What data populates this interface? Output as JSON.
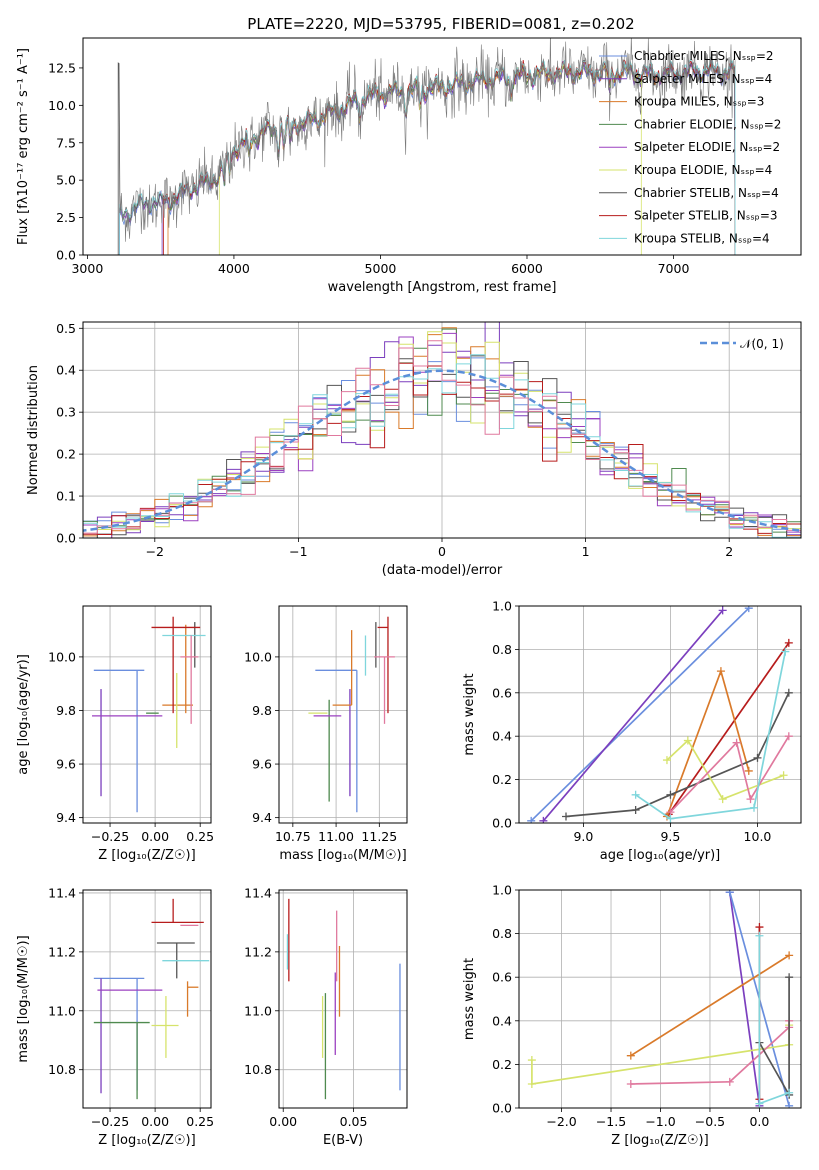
{
  "title": "PLATE=2220, MJD=53795, FIBERID=0081, z=0.202",
  "colors": {
    "Chabrier MILES": "#6a8ede",
    "Salpeter MILES": "#7b3fbe",
    "Kroupa MILES": "#d97a2a",
    "Chabrier ELODIE": "#4f8a4f",
    "Salpeter ELODIE": "#9b40c0",
    "Kroupa ELODIE": "#d6e36b",
    "Chabrier STELIB": "#555555",
    "Salpeter STELIB": "#b71c1c",
    "Kroupa STELIB": "#7fd6dc",
    "Kroupa MILES (weights)": "#e0799e",
    "gaussian": "#5b8fd9"
  },
  "chart_data": [
    {
      "id": "spectrum",
      "type": "line",
      "title": "PLATE=2220, MJD=53795, FIBERID=0081, z=0.202",
      "xlabel": "wavelength [Angstrom, rest frame]",
      "ylabel": "Flux [fλ10⁻¹⁷ erg cm⁻² s⁻¹ A⁻¹]",
      "xlim": [
        2970,
        7870
      ],
      "ylim": [
        0,
        14.5
      ],
      "xticks": [
        3000,
        4000,
        5000,
        6000,
        7000
      ],
      "yticks": [
        0.0,
        2.5,
        5.0,
        7.5,
        10.0,
        12.5
      ],
      "legend_placement": "right",
      "legend": [
        "Chabrier MILES, Nₛₛₚ=2",
        "Salpeter MILES, Nₛₛₚ=4",
        "Kroupa MILES, Nₛₛₚ=3",
        "Chabrier ELODIE, Nₛₛₚ=2",
        "Salpeter ELODIE, Nₛₛₚ=2",
        "Kroupa ELODIE, Nₛₛₚ=4",
        "Chabrier STELIB, Nₛₛₚ=4",
        "Salpeter STELIB, Nₛₛₚ=3",
        "Kroupa STELIB, Nₛₛₚ=4"
      ],
      "continuum": [
        [
          3220,
          2.5
        ],
        [
          3350,
          3.3
        ],
        [
          3550,
          3.6
        ],
        [
          3700,
          4.4
        ],
        [
          3900,
          5.3
        ],
        [
          3990,
          7.0
        ],
        [
          4200,
          8.2
        ],
        [
          4500,
          8.9
        ],
        [
          4700,
          9.6
        ],
        [
          4900,
          10.6
        ],
        [
          5100,
          10.9
        ],
        [
          5400,
          11.2
        ],
        [
          5700,
          11.7
        ],
        [
          6000,
          12.0
        ],
        [
          6300,
          12.2
        ],
        [
          6600,
          12.2
        ],
        [
          6900,
          12.1
        ],
        [
          7200,
          12.3
        ],
        [
          7420,
          12.2
        ]
      ],
      "series_starts": [
        3220,
        3510,
        3550,
        3220,
        3220,
        3900,
        3210,
        3520,
        3220
      ],
      "series_ends": [
        7420,
        7420,
        7420,
        7420,
        7420,
        6780,
        7420,
        7420,
        7420
      ]
    },
    {
      "id": "residuals",
      "type": "histogram",
      "xlabel": "(data-model)/error",
      "ylabel": "Normed distribution",
      "xlim": [
        -2.5,
        2.5
      ],
      "ylim": [
        0,
        0.515
      ],
      "xticks": [
        -2,
        -1,
        0,
        1,
        2
      ],
      "yticks": [
        0.0,
        0.1,
        0.2,
        0.3,
        0.4,
        0.5
      ],
      "legend": [
        "𝒩(0, 1)"
      ],
      "legend_placement": "top-right",
      "bin_width": 0.1,
      "gaussian": {
        "mean": 0,
        "sigma": 1
      }
    },
    {
      "id": "age-vs-Z",
      "type": "errorbar",
      "xlabel": "Z [log₁₀(Z/Z☉)]",
      "ylabel": "age  [log₁₀(age/yr)]",
      "xlim": [
        -0.4,
        0.31
      ],
      "ylim": [
        9.38,
        10.19
      ],
      "xticks": [
        -0.25,
        0.0,
        0.25
      ],
      "yticks": [
        9.4,
        9.6,
        9.8,
        10.0
      ],
      "points": [
        {
          "series": "Chabrier MILES",
          "x": -0.1,
          "xerr": [
            0.24,
            0.04
          ],
          "y": 9.95,
          "yerr": [
            0.53,
            0.0
          ]
        },
        {
          "series": "Salpeter MILES",
          "x": -0.3,
          "xerr": [
            0.0,
            0.0
          ],
          "y": 9.78,
          "yerr": [
            0.3,
            0.1
          ]
        },
        {
          "series": "Kroupa MILES",
          "x": 0.17,
          "xerr": [
            0.13,
            0.04
          ],
          "y": 9.82,
          "yerr": [
            0.03,
            0.3
          ]
        },
        {
          "series": "Chabrier ELODIE",
          "x": 0.02,
          "xerr": [
            0.07,
            0.0
          ],
          "y": 9.79,
          "yerr": [
            0.0,
            0.0
          ]
        },
        {
          "series": "Salpeter ELODIE",
          "x": -0.19,
          "xerr": [
            0.16,
            0.23
          ],
          "y": 9.78,
          "yerr": [
            0.0,
            0.0
          ]
        },
        {
          "series": "Kroupa ELODIE",
          "x": 0.12,
          "xerr": [
            0.0,
            0.0
          ],
          "y": 9.79,
          "yerr": [
            0.13,
            0.15
          ]
        },
        {
          "series": "Chabrier STELIB",
          "x": 0.22,
          "xerr": [
            0.0,
            0.0
          ],
          "y": 10.08,
          "yerr": [
            0.12,
            0.05
          ]
        },
        {
          "series": "Salpeter STELIB",
          "x": 0.1,
          "xerr": [
            0.12,
            0.15
          ],
          "y": 10.11,
          "yerr": [
            0.32,
            0.04
          ]
        },
        {
          "series": "Kroupa STELIB",
          "x": 0.16,
          "xerr": [
            0.12,
            0.12
          ],
          "y": 10.08,
          "yerr": [
            0.0,
            0.0
          ]
        },
        {
          "series": "Kroupa MILES (weights)",
          "x": 0.2,
          "xerr": [
            0.06,
            0.04
          ],
          "y": 10.0,
          "yerr": [
            0.25,
            0.08
          ]
        }
      ]
    },
    {
      "id": "age-vs-mass",
      "type": "errorbar",
      "xlabel": "mass [log₁₀(M/M☉)]",
      "ylabel": "",
      "xlim": [
        10.67,
        11.41
      ],
      "ylim": [
        9.38,
        10.19
      ],
      "xticks": [
        10.75,
        11.0,
        11.25
      ],
      "yticks": [
        9.4,
        9.6,
        9.8,
        10.0
      ],
      "points": [
        {
          "series": "Chabrier MILES",
          "x": 11.12,
          "xerr": [
            0.24,
            0.0
          ],
          "y": 9.95,
          "yerr": [
            0.53,
            0.0
          ]
        },
        {
          "series": "Salpeter MILES",
          "x": 11.08,
          "xerr": [
            0.0,
            0.0
          ],
          "y": 9.78,
          "yerr": [
            0.3,
            0.1
          ]
        },
        {
          "series": "Kroupa MILES",
          "x": 11.09,
          "xerr": [
            0.11,
            0.0
          ],
          "y": 9.82,
          "yerr": [
            0.0,
            0.28
          ]
        },
        {
          "series": "Chabrier ELODIE",
          "x": 10.96,
          "xerr": [
            0.0,
            0.0
          ],
          "y": 9.79,
          "yerr": [
            0.33,
            0.05
          ]
        },
        {
          "series": "Salpeter ELODIE",
          "x": 11.03,
          "xerr": [
            0.16,
            0.0
          ],
          "y": 9.78,
          "yerr": [
            0.0,
            0.0
          ]
        },
        {
          "series": "Kroupa ELODIE",
          "x": 10.95,
          "xerr": [
            0.11,
            0.0
          ],
          "y": 9.79,
          "yerr": [
            0.0,
            0.0
          ]
        },
        {
          "series": "Chabrier STELIB",
          "x": 11.23,
          "xerr": [
            0.0,
            0.0
          ],
          "y": 10.08,
          "yerr": [
            0.12,
            0.05
          ]
        },
        {
          "series": "Salpeter STELIB",
          "x": 11.3,
          "xerr": [
            0.06,
            0.0
          ],
          "y": 10.11,
          "yerr": [
            0.32,
            0.04
          ]
        },
        {
          "series": "Kroupa STELIB",
          "x": 11.17,
          "xerr": [
            0.0,
            0.0
          ],
          "y": 10.08,
          "yerr": [
            0.15,
            0.0
          ]
        },
        {
          "series": "Kroupa MILES (weights)",
          "x": 11.28,
          "xerr": [
            0.06,
            0.06
          ],
          "y": 10.0,
          "yerr": [
            0.25,
            0.0
          ]
        }
      ]
    },
    {
      "id": "weight-vs-age",
      "type": "line",
      "xlabel": "age  [log₁₀(age/yr)]",
      "ylabel": "mass weight",
      "xlim": [
        8.63,
        10.25
      ],
      "ylim": [
        0,
        1.0
      ],
      "xticks": [
        9.0,
        9.5,
        10.0
      ],
      "yticks": [
        0.0,
        0.2,
        0.4,
        0.6,
        0.8,
        1.0
      ],
      "series": [
        {
          "name": "Chabrier MILES",
          "points": [
            [
              8.7,
              0.01
            ],
            [
              9.95,
              0.99
            ]
          ]
        },
        {
          "name": "Salpeter MILES",
          "points": [
            [
              8.77,
              0.01
            ],
            [
              9.8,
              0.98
            ]
          ]
        },
        {
          "name": "Salpeter STELIB",
          "points": [
            [
              9.49,
              0.04
            ],
            [
              10.18,
              0.83
            ]
          ]
        },
        {
          "name": "Kroupa MILES",
          "points": [
            [
              9.48,
              0.03
            ],
            [
              9.79,
              0.7
            ],
            [
              9.95,
              0.24
            ]
          ]
        },
        {
          "name": "Chabrier STELIB",
          "points": [
            [
              8.9,
              0.03
            ],
            [
              9.3,
              0.06
            ],
            [
              9.5,
              0.13
            ],
            [
              10.0,
              0.3
            ],
            [
              10.18,
              0.6
            ]
          ]
        },
        {
          "name": "Kroupa ELODIE",
          "points": [
            [
              9.48,
              0.29
            ],
            [
              9.6,
              0.38
            ],
            [
              9.8,
              0.11
            ],
            [
              10.15,
              0.22
            ]
          ]
        },
        {
          "name": "Kroupa MILES (weights)",
          "points": [
            [
              9.5,
              0.05
            ],
            [
              9.88,
              0.37
            ],
            [
              9.96,
              0.11
            ],
            [
              10.18,
              0.4
            ]
          ]
        },
        {
          "name": "Kroupa STELIB",
          "points": [
            [
              9.3,
              0.13
            ],
            [
              9.5,
              0.02
            ],
            [
              9.98,
              0.07
            ],
            [
              10.16,
              0.79
            ]
          ]
        }
      ]
    },
    {
      "id": "mass-vs-Z",
      "type": "errorbar",
      "xlabel": "Z [log₁₀(Z/Z☉)]",
      "ylabel": "mass [log₁₀(M/M☉)]",
      "xlim": [
        -0.4,
        0.31
      ],
      "ylim": [
        10.67,
        11.41
      ],
      "xticks": [
        -0.25,
        0.0,
        0.25
      ],
      "yticks": [
        10.8,
        11.0,
        11.2,
        11.4
      ],
      "points": [
        {
          "series": "Chabrier MILES",
          "x": -0.1,
          "xerr": [
            0.24,
            0.04
          ],
          "y": 11.11,
          "yerr": [
            0.38,
            0.0
          ]
        },
        {
          "series": "Salpeter MILES",
          "x": -0.3,
          "xerr": [
            0.0,
            0.0
          ],
          "y": 11.07,
          "yerr": [
            0.35,
            0.04
          ]
        },
        {
          "series": "Kroupa MILES",
          "x": 0.18,
          "xerr": [
            0.0,
            0.06
          ],
          "y": 11.08,
          "yerr": [
            0.1,
            0.02
          ]
        },
        {
          "series": "Chabrier ELODIE",
          "x": -0.1,
          "xerr": [
            0.24,
            0.07
          ],
          "y": 10.96,
          "yerr": [
            0.26,
            0.0
          ]
        },
        {
          "series": "Salpeter ELODIE",
          "x": -0.19,
          "xerr": [
            0.13,
            0.23
          ],
          "y": 11.07,
          "yerr": [
            0.0,
            0.0
          ]
        },
        {
          "series": "Kroupa ELODIE",
          "x": 0.06,
          "xerr": [
            0.08,
            0.07
          ],
          "y": 10.95,
          "yerr": [
            0.11,
            0.1
          ]
        },
        {
          "series": "Chabrier STELIB",
          "x": 0.12,
          "xerr": [
            0.11,
            0.1
          ],
          "y": 11.23,
          "yerr": [
            0.12,
            0.0
          ]
        },
        {
          "series": "Salpeter STELIB",
          "x": 0.1,
          "xerr": [
            0.12,
            0.17
          ],
          "y": 11.3,
          "yerr": [
            0.0,
            0.08
          ]
        },
        {
          "series": "Kroupa STELIB",
          "x": 0.16,
          "xerr": [
            0.12,
            0.14
          ],
          "y": 11.17,
          "yerr": [
            0.0,
            0.0
          ]
        },
        {
          "series": "Kroupa MILES (weights)",
          "x": 0.2,
          "xerr": [
            0.06,
            0.04
          ],
          "y": 11.29,
          "yerr": [
            0.0,
            0.0
          ]
        }
      ]
    },
    {
      "id": "mass-vs-ebv",
      "type": "errorbar",
      "xlabel": "E(B-V)",
      "ylabel": "",
      "xlim": [
        -0.003,
        0.088
      ],
      "ylim": [
        10.67,
        11.41
      ],
      "xticks": [
        0.0,
        0.05
      ],
      "yticks": [
        10.8,
        11.0,
        11.2,
        11.4
      ],
      "points": [
        {
          "series": "Salpeter STELIB",
          "x": 0.004,
          "xerr": [
            0,
            0
          ],
          "y": 11.24,
          "yerr": [
            0.14,
            0.14
          ]
        },
        {
          "series": "Kroupa STELIB",
          "x": 0.003,
          "xerr": [
            0,
            0
          ],
          "y": 11.2,
          "yerr": [
            0.06,
            0.06
          ]
        },
        {
          "series": "Kroupa ELODIE",
          "x": 0.028,
          "xerr": [
            0,
            0
          ],
          "y": 10.95,
          "yerr": [
            0.11,
            0.1
          ]
        },
        {
          "series": "Chabrier ELODIE",
          "x": 0.03,
          "xerr": [
            0,
            0
          ],
          "y": 10.96,
          "yerr": [
            0.26,
            0.1
          ]
        },
        {
          "series": "Salpeter ELODIE",
          "x": 0.037,
          "xerr": [
            0,
            0
          ],
          "y": 10.98,
          "yerr": [
            0.13,
            0.15
          ]
        },
        {
          "series": "Kroupa MILES (weights)",
          "x": 0.038,
          "xerr": [
            0,
            0
          ],
          "y": 11.2,
          "yerr": [
            0.1,
            0.14
          ]
        },
        {
          "series": "Kroupa MILES",
          "x": 0.04,
          "xerr": [
            0,
            0
          ],
          "y": 11.1,
          "yerr": [
            0.12,
            0.12
          ]
        },
        {
          "series": "Chabrier MILES",
          "x": 0.083,
          "xerr": [
            0,
            0
          ],
          "y": 10.94,
          "yerr": [
            0.21,
            0.22
          ]
        }
      ]
    },
    {
      "id": "weight-vs-Z",
      "type": "line",
      "xlabel": "Z [log₁₀(Z/Z☉)]",
      "ylabel": "mass weight",
      "xlim": [
        -2.43,
        0.42
      ],
      "ylim": [
        0,
        1.0
      ],
      "xticks": [
        -2.0,
        -1.5,
        -1.0,
        -0.5,
        0.0
      ],
      "yticks": [
        0.0,
        0.2,
        0.4,
        0.6,
        0.8,
        1.0
      ],
      "series": [
        {
          "name": "Salpeter MILES",
          "points": [
            [
              -0.3,
              0.99
            ],
            [
              -0.0,
              0.01
            ]
          ]
        },
        {
          "name": "Chabrier MILES",
          "points": [
            [
              -0.3,
              0.99
            ],
            [
              0.3,
              0.01
            ]
          ]
        },
        {
          "name": "Kroupa MILES",
          "points": [
            [
              -1.3,
              0.24
            ],
            [
              0.3,
              0.7
            ]
          ]
        },
        {
          "name": "Kroupa ELODIE",
          "points": [
            [
              -2.3,
              0.22
            ],
            [
              -2.3,
              0.11
            ],
            [
              0.3,
              0.29
            ],
            [
              0.3,
              0.38
            ]
          ]
        },
        {
          "name": "Kroupa MILES (weights)",
          "points": [
            [
              -1.3,
              0.11
            ],
            [
              -0.3,
              0.12
            ],
            [
              0.3,
              0.37
            ],
            [
              0.3,
              0.4
            ]
          ]
        },
        {
          "name": "Chabrier STELIB",
          "points": [
            [
              0.0,
              0.3
            ],
            [
              0.3,
              0.06
            ],
            [
              0.3,
              0.6
            ]
          ]
        },
        {
          "name": "Salpeter STELIB",
          "points": [
            [
              0.0,
              0.83
            ],
            [
              0.0,
              0.04
            ]
          ]
        },
        {
          "name": "Kroupa STELIB",
          "points": [
            [
              0.0,
              0.79
            ],
            [
              0.0,
              0.02
            ],
            [
              0.3,
              0.07
            ]
          ]
        }
      ]
    }
  ]
}
